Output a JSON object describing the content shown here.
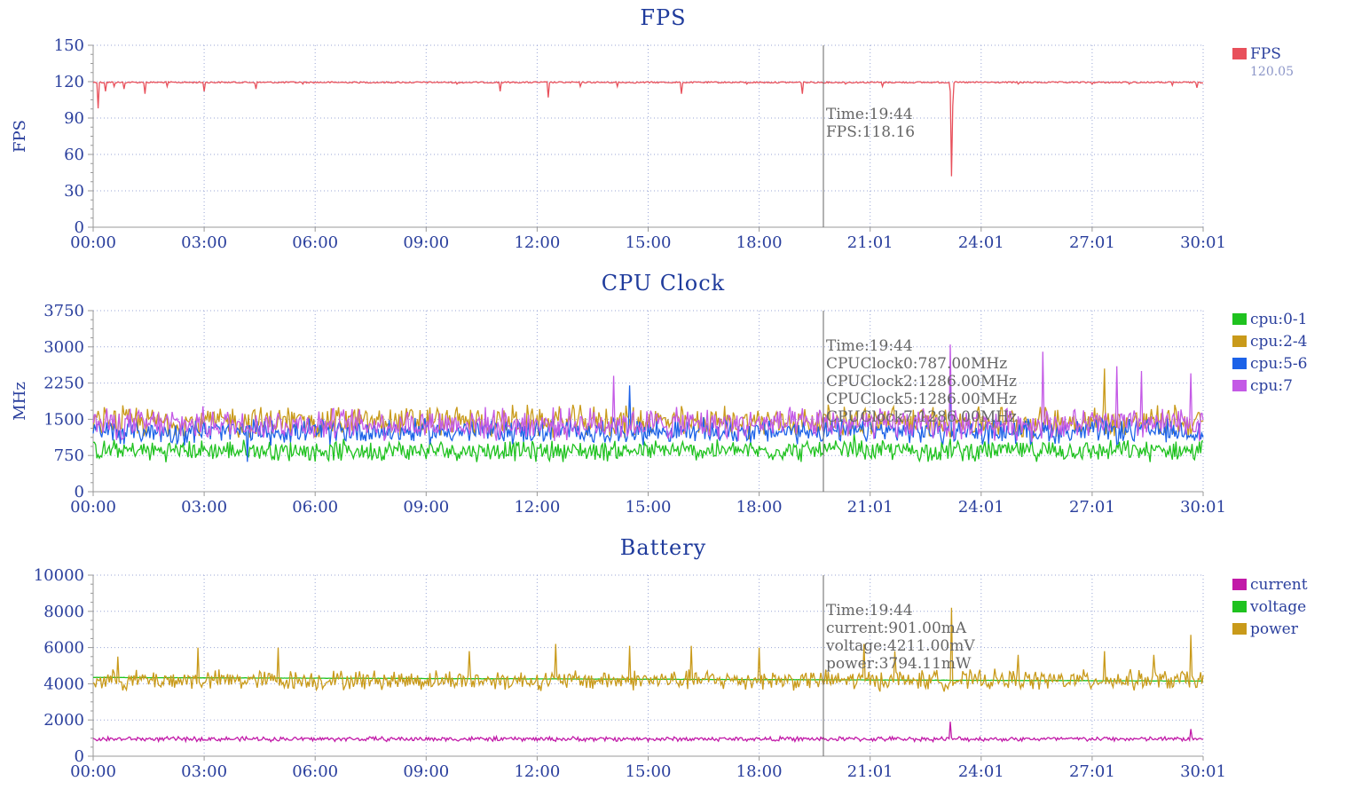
{
  "charts": [
    {
      "key": "fps",
      "legend_value": "120.05",
      "tooltip": [
        "Time:19:44",
        "FPS:118.16"
      ]
    },
    {
      "key": "cpu",
      "tooltip": [
        "Time:19:44",
        "CPUClock0:787.00MHz",
        "CPUClock2:1286.00MHz",
        "CPUClock5:1286.00MHz",
        "CPUClock7:1286.00MHz"
      ]
    },
    {
      "key": "battery",
      "tooltip": [
        "Time:19:44",
        "current:901.00mA",
        "voltage:4211.00mV",
        "power:3794.11mW"
      ]
    }
  ],
  "chart_data": [
    {
      "type": "line",
      "title": "FPS",
      "ylabel": "FPS",
      "xlabel": "",
      "ylim": [
        0,
        150
      ],
      "yticks": [
        0,
        30,
        60,
        90,
        120,
        150
      ],
      "xlim": [
        0,
        1801
      ],
      "xticks": [
        "00:00",
        "03:00",
        "06:00",
        "09:00",
        "12:00",
        "15:00",
        "18:00",
        "21:01",
        "24:01",
        "27:01",
        "30:01"
      ],
      "grid": true,
      "legend_placement": "right",
      "cursor_time": "19:44",
      "series": [
        {
          "name": "FPS",
          "color": "#e8505b",
          "base": 120,
          "noise": 1.2,
          "dips": [
            [
              8,
              98
            ],
            [
              20,
              112
            ],
            [
              35,
              116
            ],
            [
              50,
              114
            ],
            [
              85,
              110
            ],
            [
              120,
              116
            ],
            [
              180,
              112
            ],
            [
              265,
              114
            ],
            [
              340,
              118
            ],
            [
              590,
              118
            ],
            [
              660,
              112
            ],
            [
              738,
              107
            ],
            [
              790,
              116
            ],
            [
              850,
              116
            ],
            [
              955,
              110
            ],
            [
              1060,
              118
            ],
            [
              1150,
              110
            ],
            [
              1220,
              118
            ],
            [
              1280,
              116
            ],
            [
              1390,
              112
            ],
            [
              1392,
              42
            ],
            [
              1395,
              100
            ],
            [
              1500,
              118
            ],
            [
              1620,
              118
            ],
            [
              1680,
              118
            ],
            [
              1750,
              117
            ],
            [
              1790,
              115
            ]
          ]
        }
      ]
    },
    {
      "type": "line",
      "title": "CPU Clock",
      "ylabel": "MHz",
      "xlabel": "",
      "ylim": [
        0,
        3750
      ],
      "yticks": [
        0,
        750,
        1500,
        2250,
        3000,
        3750
      ],
      "xlim": [
        0,
        1801
      ],
      "xticks": [
        "00:00",
        "03:00",
        "06:00",
        "09:00",
        "12:00",
        "15:00",
        "18:00",
        "21:01",
        "24:01",
        "27:01",
        "30:01"
      ],
      "grid": true,
      "legend_placement": "right",
      "cursor_time": "19:44",
      "series": [
        {
          "name": "cpu:0-1",
          "color": "#1fc21f",
          "base": 850,
          "spread": 250,
          "spikes": [
            [
              1235,
              1200
            ],
            [
              1390,
              1100
            ]
          ]
        },
        {
          "name": "cpu:2-4",
          "color": "#c99a1a",
          "base": 1450,
          "spread": 380,
          "spikes": [
            [
              1640,
              2550
            ],
            [
              1755,
              1800
            ]
          ]
        },
        {
          "name": "cpu:5-6",
          "color": "#1c62e8",
          "base": 1250,
          "spread": 300,
          "spikes": [
            [
              250,
              620
            ],
            [
              870,
              2200
            ],
            [
              1390,
              2300
            ]
          ]
        },
        {
          "name": "cpu:7",
          "color": "#c45ae6",
          "base": 1400,
          "spread": 380,
          "spikes": [
            [
              845,
              2400
            ],
            [
              1391,
              3050
            ],
            [
              1540,
              2900
            ],
            [
              1660,
              2600
            ],
            [
              1700,
              2500
            ],
            [
              1780,
              2450
            ]
          ]
        }
      ]
    },
    {
      "type": "line",
      "title": "Battery",
      "ylabel": "",
      "xlabel": "",
      "ylim": [
        0,
        10000
      ],
      "yticks": [
        0,
        2000,
        4000,
        6000,
        8000,
        10000
      ],
      "xlim": [
        0,
        1801
      ],
      "xticks": [
        "00:00",
        "03:00",
        "06:00",
        "09:00",
        "12:00",
        "15:00",
        "18:00",
        "21:01",
        "24:01",
        "27:01",
        "30:01"
      ],
      "grid": true,
      "legend_placement": "right",
      "cursor_time": "19:44",
      "series": [
        {
          "name": "current",
          "color": "#c21aa8",
          "base": 950,
          "spread": 150,
          "spikes": [
            [
              1390,
              1900
            ],
            [
              1780,
              1500
            ]
          ]
        },
        {
          "name": "voltage",
          "color": "#1fc21f",
          "start": 4350,
          "end": 4150
        },
        {
          "name": "power",
          "color": "#c99a1a",
          "base": 4200,
          "spread": 650,
          "spikes": [
            [
              40,
              5500
            ],
            [
              170,
              6000
            ],
            [
              300,
              6000
            ],
            [
              610,
              5800
            ],
            [
              750,
              6200
            ],
            [
              870,
              6100
            ],
            [
              970,
              6100
            ],
            [
              1080,
              6000
            ],
            [
              1250,
              6200
            ],
            [
              1300,
              5800
            ],
            [
              1392,
              8200
            ],
            [
              1500,
              5600
            ],
            [
              1640,
              5800
            ],
            [
              1720,
              5600
            ],
            [
              1780,
              6700
            ]
          ]
        }
      ]
    }
  ]
}
